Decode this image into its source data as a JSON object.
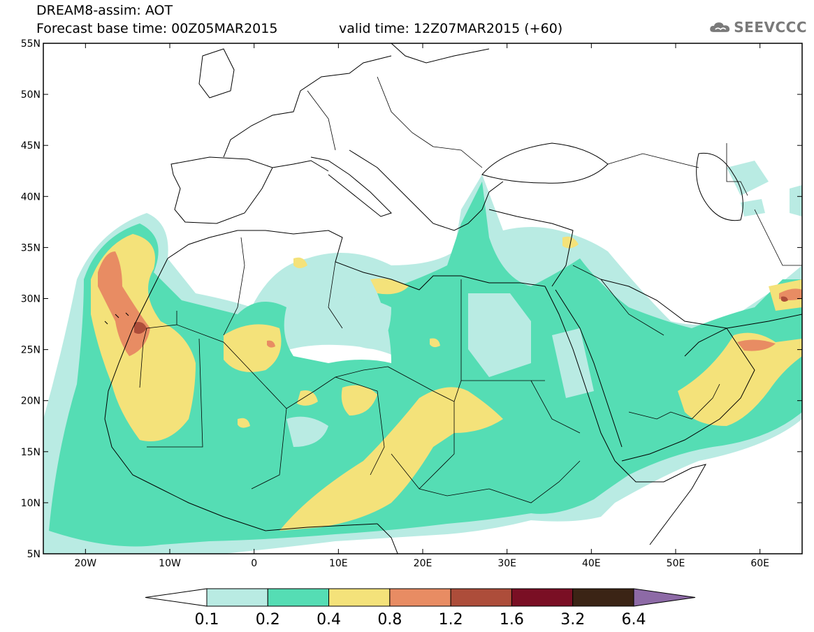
{
  "header": {
    "title": "DREAM8-assim: AOT",
    "base_time": "Forecast base time: 00Z05MAR2015",
    "valid_time": "valid time: 12Z07MAR2015 (+60)"
  },
  "logo": {
    "text": "SEEVCCC",
    "icon": "cloud-icon",
    "color": "#7a7a7a"
  },
  "map": {
    "lon_range": [
      -25,
      65
    ],
    "lat_range": [
      5,
      55
    ],
    "lon_ticks": [
      {
        "value": -20,
        "label": "20W"
      },
      {
        "value": -10,
        "label": "10W"
      },
      {
        "value": 0,
        "label": "0"
      },
      {
        "value": 10,
        "label": "10E"
      },
      {
        "value": 20,
        "label": "20E"
      },
      {
        "value": 30,
        "label": "30E"
      },
      {
        "value": 40,
        "label": "40E"
      },
      {
        "value": 50,
        "label": "50E"
      },
      {
        "value": 60,
        "label": "60E"
      }
    ],
    "lat_ticks": [
      {
        "value": 55,
        "label": "55N"
      },
      {
        "value": 50,
        "label": "50N"
      },
      {
        "value": 45,
        "label": "45N"
      },
      {
        "value": 40,
        "label": "40N"
      },
      {
        "value": 35,
        "label": "35N"
      },
      {
        "value": 30,
        "label": "30N"
      },
      {
        "value": 25,
        "label": "25N"
      },
      {
        "value": 20,
        "label": "20N"
      },
      {
        "value": 15,
        "label": "15N"
      },
      {
        "value": 10,
        "label": "10N"
      },
      {
        "value": 5,
        "label": "5N"
      }
    ]
  },
  "colorbar": {
    "levels": [
      "0.1",
      "0.2",
      "0.4",
      "0.8",
      "1.2",
      "1.6",
      "3.2",
      "6.4"
    ],
    "colors": [
      "#ffffff",
      "#b9ebe3",
      "#55ddb4",
      "#f4e27a",
      "#e88c63",
      "#ad4d3a",
      "#7a0f24",
      "#3b2415",
      "#8d6aa6"
    ]
  }
}
